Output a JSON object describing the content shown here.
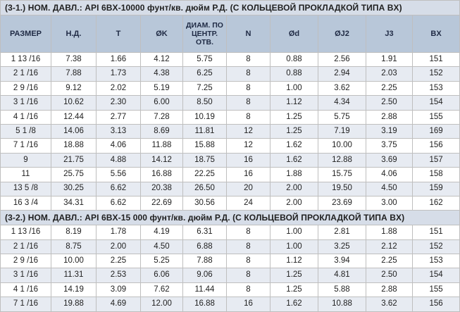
{
  "headers": [
    "РАЗМЕР",
    "Н.Д.",
    "T",
    "ØK",
    "ДИАМ. ПО ЦЕНТР. ОТВ.",
    "N",
    "Ød",
    "ØJ2",
    "J3",
    "BX"
  ],
  "section1": {
    "title": "(3-1.) НОМ. ДАВЛ.: API 6BX-10000 фунт/кв. дюйм Р.Д. (С КОЛЬЦЕВОЙ ПРОКЛАДКОЙ ТИПА BX)",
    "rows": [
      [
        "1 13 /16",
        "7.38",
        "1.66",
        "4.12",
        "5.75",
        "8",
        "0.88",
        "2.56",
        "1.91",
        "151"
      ],
      [
        "2 1 /16",
        "7.88",
        "1.73",
        "4.38",
        "6.25",
        "8",
        "0.88",
        "2.94",
        "2.03",
        "152"
      ],
      [
        "2 9 /16",
        "9.12",
        "2.02",
        "5.19",
        "7.25",
        "8",
        "1.00",
        "3.62",
        "2.25",
        "153"
      ],
      [
        "3 1 /16",
        "10.62",
        "2.30",
        "6.00",
        "8.50",
        "8",
        "1.12",
        "4.34",
        "2.50",
        "154"
      ],
      [
        "4 1 /16",
        "12.44",
        "2.77",
        "7.28",
        "10.19",
        "8",
        "1.25",
        "5.75",
        "2.88",
        "155"
      ],
      [
        "5 1 /8",
        "14.06",
        "3.13",
        "8.69",
        "11.81",
        "12",
        "1.25",
        "7.19",
        "3.19",
        "169"
      ],
      [
        "7 1 /16",
        "18.88",
        "4.06",
        "11.88",
        "15.88",
        "12",
        "1.62",
        "10.00",
        "3.75",
        "156"
      ],
      [
        "9",
        "21.75",
        "4.88",
        "14.12",
        "18.75",
        "16",
        "1.62",
        "12.88",
        "3.69",
        "157"
      ],
      [
        "11",
        "25.75",
        "5.56",
        "16.88",
        "22.25",
        "16",
        "1.88",
        "15.75",
        "4.06",
        "158"
      ],
      [
        "13 5 /8",
        "30.25",
        "6.62",
        "20.38",
        "26.50",
        "20",
        "2.00",
        "19.50",
        "4.50",
        "159"
      ],
      [
        "16 3 /4",
        "34.31",
        "6.62",
        "22.69",
        "30.56",
        "24",
        "2.00",
        "23.69",
        "3.00",
        "162"
      ]
    ]
  },
  "section2": {
    "title": "(3-2.) НОМ. ДАВЛ.: API 6BX-15 000 фунт/кв. дюйм Р.Д. (С КОЛЬЦЕВОЙ ПРОКЛАДКОЙ ТИПА BX)",
    "rows": [
      [
        "1 13 /16",
        "8.19",
        "1.78",
        "4.19",
        "6.31",
        "8",
        "1.00",
        "2.81",
        "1.88",
        "151"
      ],
      [
        "2 1 /16",
        "8.75",
        "2.00",
        "4.50",
        "6.88",
        "8",
        "1.00",
        "3.25",
        "2.12",
        "152"
      ],
      [
        "2 9 /16",
        "10.00",
        "2.25",
        "5.25",
        "7.88",
        "8",
        "1.12",
        "3.94",
        "2.25",
        "153"
      ],
      [
        "3 1 /16",
        "11.31",
        "2.53",
        "6.06",
        "9.06",
        "8",
        "1.25",
        "4.81",
        "2.50",
        "154"
      ],
      [
        "4 1 /16",
        "14.19",
        "3.09",
        "7.62",
        "11.44",
        "8",
        "1.25",
        "5.88",
        "2.88",
        "155"
      ],
      [
        "7 1 /16",
        "19.88",
        "4.69",
        "12.00",
        "16.88",
        "16",
        "1.62",
        "10.88",
        "3.62",
        "156"
      ]
    ]
  }
}
